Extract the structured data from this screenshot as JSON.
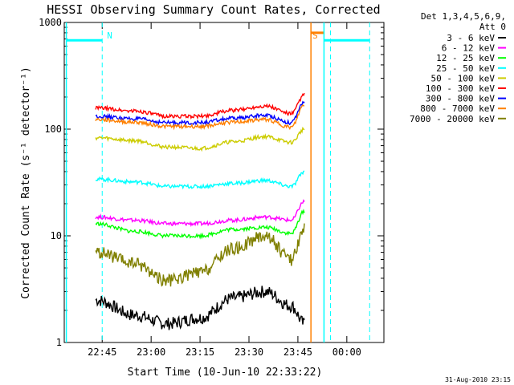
{
  "chart_data": {
    "type": "line",
    "title": "HESSI Observing Summary Count Rates, Corrected",
    "xlabel": "Start Time (10-Jun-10 22:33:22)",
    "ylabel": "Corrected Count Rate (s⁻¹ detector⁻¹)",
    "y_scale": "log",
    "ylim": [
      1,
      1000
    ],
    "x_range_minutes_after_start": [
      0,
      98
    ],
    "y_ticks": [
      {
        "value": 1,
        "label": "1"
      },
      {
        "value": 10,
        "label": "10"
      },
      {
        "value": 100,
        "label": "100"
      },
      {
        "value": 1000,
        "label": "1000"
      }
    ],
    "x_ticks": [
      {
        "label": "22:45",
        "time": "22:45"
      },
      {
        "label": "23:00",
        "time": "23:00"
      },
      {
        "label": "23:15",
        "time": "23:15"
      },
      {
        "label": "23:30",
        "time": "23:30"
      },
      {
        "label": "23:45",
        "time": "23:45"
      },
      {
        "label": "00:00",
        "time": "00:00"
      }
    ],
    "legend_header": [
      "Det 1,3,4,5,6,9,",
      "Att 0"
    ],
    "legend_placement": "right",
    "grid": false,
    "series": [
      {
        "name": "3 - 6 keV",
        "color": "#000000",
        "x": [
          "22:43",
          "22:55",
          "23:05",
          "23:15",
          "23:25",
          "23:35",
          "23:43",
          "23:47"
        ],
        "y": [
          2.5,
          1.8,
          1.5,
          1.7,
          2.6,
          3.0,
          2.2,
          1.5
        ]
      },
      {
        "name": "6 - 12 keV",
        "color": "#ff00ff",
        "x": [
          "22:43",
          "22:55",
          "23:05",
          "23:15",
          "23:25",
          "23:35",
          "23:43",
          "23:47"
        ],
        "y": [
          15,
          14,
          13,
          13,
          14,
          15,
          14,
          21
        ]
      },
      {
        "name": "12 - 25 keV",
        "color": "#00ff00",
        "x": [
          "22:43",
          "22:55",
          "23:05",
          "23:15",
          "23:25",
          "23:35",
          "23:43",
          "23:47"
        ],
        "y": [
          13,
          11,
          10,
          10,
          11.5,
          12,
          10.5,
          17
        ]
      },
      {
        "name": "25 - 50 keV",
        "color": "#00ffff",
        "x": [
          "22:43",
          "22:55",
          "23:05",
          "23:15",
          "23:25",
          "23:35",
          "23:43",
          "23:47"
        ],
        "y": [
          34,
          32,
          29,
          29,
          31,
          33,
          29,
          40
        ]
      },
      {
        "name": "50 - 100 keV",
        "color": "#cccc00",
        "x": [
          "22:43",
          "22:55",
          "23:05",
          "23:15",
          "23:25",
          "23:35",
          "23:43",
          "23:47"
        ],
        "y": [
          83,
          78,
          68,
          66,
          76,
          85,
          75,
          100
        ]
      },
      {
        "name": "100 - 300 keV",
        "color": "#ff0000",
        "x": [
          "22:43",
          "22:55",
          "23:05",
          "23:15",
          "23:25",
          "23:35",
          "23:43",
          "23:47"
        ],
        "y": [
          158,
          148,
          132,
          132,
          150,
          165,
          140,
          210
        ]
      },
      {
        "name": "300 - 800 keV",
        "color": "#0000ff",
        "x": [
          "22:43",
          "22:55",
          "23:05",
          "23:15",
          "23:25",
          "23:35",
          "23:43",
          "23:47"
        ],
        "y": [
          132,
          125,
          115,
          115,
          126,
          135,
          115,
          180
        ]
      },
      {
        "name": "800 - 7000 keV",
        "color": "#ff8000",
        "x": [
          "22:43",
          "22:55",
          "23:05",
          "23:15",
          "23:25",
          "23:35",
          "23:43",
          "23:47"
        ],
        "y": [
          123,
          116,
          106,
          106,
          116,
          123,
          104,
          170
        ]
      },
      {
        "name": "7000 - 20000 keV",
        "color": "#808000",
        "x": [
          "22:43",
          "22:55",
          "23:05",
          "23:15",
          "23:25",
          "23:35",
          "23:43",
          "23:47"
        ],
        "y": [
          7,
          5.5,
          3.8,
          4.5,
          7.5,
          10,
          6,
          12
        ]
      }
    ],
    "annotations": [
      {
        "label": "N",
        "color": "#00ffff",
        "at": "22:45"
      },
      {
        "label": "S",
        "color": "#ff8000",
        "at": "23:48"
      }
    ],
    "state_bars": [
      {
        "color": "#00ffff",
        "x": [
          "22:34",
          "22:45"
        ],
        "y": 680
      },
      {
        "color": "#ff8000",
        "x": [
          "23:49",
          "23:53"
        ],
        "y": 800
      },
      {
        "color": "#00ffff",
        "x": [
          "23:53",
          "00:07"
        ],
        "y": 680
      }
    ],
    "solid_markers": [
      {
        "color": "#00ffff",
        "at": "22:34"
      },
      {
        "color": "#ff8000",
        "at": "23:49"
      },
      {
        "color": "#00ffff",
        "at": "23:53"
      }
    ],
    "dashed_markers": [
      {
        "color": "#00ffff",
        "at": "22:45"
      },
      {
        "color": "#00ffff",
        "at": "23:55"
      },
      {
        "color": "#00ffff",
        "at": "00:07"
      }
    ],
    "footer_stamp": "31-Aug-2010 23:15"
  }
}
